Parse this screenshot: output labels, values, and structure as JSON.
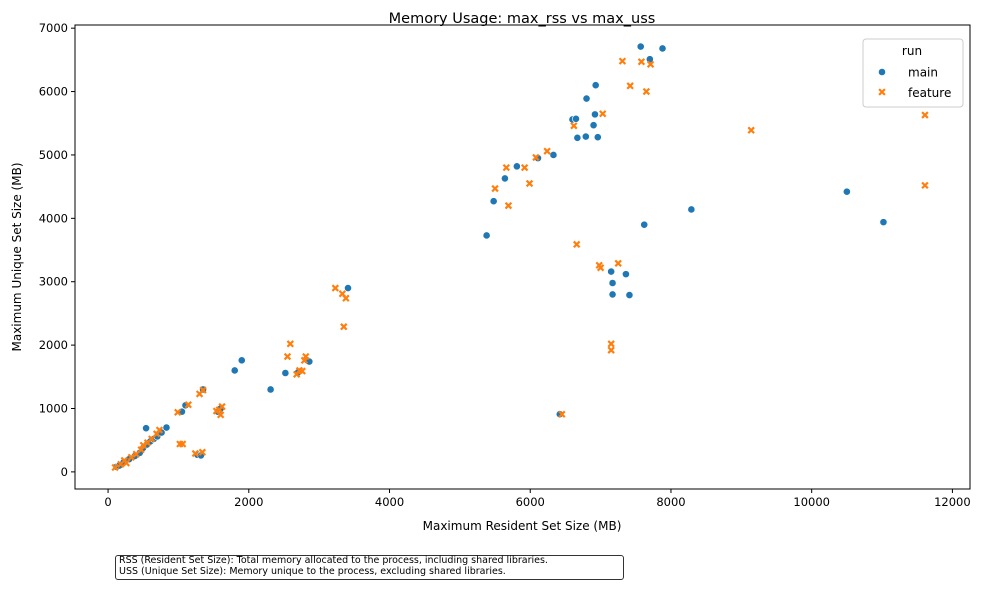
{
  "chart_data": {
    "type": "scatter",
    "title": "Memory Usage: max_rss vs max_uss",
    "xlabel": "Maximum Resident Set Size (MB)",
    "ylabel": "Maximum Unique Set Size (MB)",
    "xlim": [
      -470,
      12250
    ],
    "ylim": [
      -270,
      7050
    ],
    "xticks": [
      0,
      2000,
      4000,
      6000,
      8000,
      10000,
      12000
    ],
    "xtick_labels": [
      "0",
      "2000",
      "4000",
      "6000",
      "8000",
      "10000",
      "12000"
    ],
    "yticks": [
      0,
      1000,
      2000,
      3000,
      4000,
      5000,
      6000,
      7000
    ],
    "ytick_labels": [
      "0",
      "1000",
      "2000",
      "3000",
      "4000",
      "5000",
      "6000",
      "7000"
    ],
    "grid": false,
    "legend": {
      "title": "run",
      "position": "top-right"
    },
    "series": [
      {
        "name": "main",
        "marker": "circle",
        "color": "#1f77b4",
        "points": [
          [
            120,
            80
          ],
          [
            160,
            100
          ],
          [
            220,
            150
          ],
          [
            300,
            200
          ],
          [
            380,
            250
          ],
          [
            450,
            300
          ],
          [
            500,
            380
          ],
          [
            550,
            430
          ],
          [
            600,
            480
          ],
          [
            650,
            520
          ],
          [
            700,
            560
          ],
          [
            760,
            620
          ],
          [
            540,
            690
          ],
          [
            830,
            700
          ],
          [
            1050,
            950
          ],
          [
            1100,
            1050
          ],
          [
            1270,
            270
          ],
          [
            1320,
            260
          ],
          [
            1350,
            1300
          ],
          [
            1560,
            950
          ],
          [
            1600,
            1000
          ],
          [
            1800,
            1600
          ],
          [
            1900,
            1760
          ],
          [
            2310,
            1300
          ],
          [
            2520,
            1560
          ],
          [
            2700,
            1570
          ],
          [
            2830,
            1760
          ],
          [
            2860,
            1740
          ],
          [
            3410,
            2900
          ],
          [
            5380,
            3730
          ],
          [
            5480,
            4270
          ],
          [
            5640,
            4630
          ],
          [
            5810,
            4820
          ],
          [
            6110,
            4950
          ],
          [
            6330,
            5000
          ],
          [
            6420,
            910
          ],
          [
            6600,
            5560
          ],
          [
            6650,
            5570
          ],
          [
            6670,
            5270
          ],
          [
            6790,
            5290
          ],
          [
            6800,
            5890
          ],
          [
            6900,
            5470
          ],
          [
            6920,
            5640
          ],
          [
            6930,
            6100
          ],
          [
            6960,
            5280
          ],
          [
            7150,
            3160
          ],
          [
            7170,
            2980
          ],
          [
            7170,
            2800
          ],
          [
            7360,
            3120
          ],
          [
            7410,
            2790
          ],
          [
            7570,
            6710
          ],
          [
            7620,
            3900
          ],
          [
            7700,
            6510
          ],
          [
            7880,
            6680
          ],
          [
            8290,
            4140
          ],
          [
            10500,
            4420
          ],
          [
            11020,
            3940
          ]
        ]
      },
      {
        "name": "feature",
        "marker": "x",
        "color": "#ff7f0e",
        "points": [
          [
            100,
            70
          ],
          [
            180,
            120
          ],
          [
            230,
            180
          ],
          [
            260,
            140
          ],
          [
            330,
            230
          ],
          [
            400,
            280
          ],
          [
            470,
            350
          ],
          [
            500,
            420
          ],
          [
            560,
            460
          ],
          [
            620,
            520
          ],
          [
            690,
            600
          ],
          [
            730,
            660
          ],
          [
            990,
            940
          ],
          [
            1020,
            440
          ],
          [
            1060,
            440
          ],
          [
            1140,
            1060
          ],
          [
            1240,
            290
          ],
          [
            1300,
            1230
          ],
          [
            1340,
            310
          ],
          [
            1350,
            1290
          ],
          [
            1540,
            960
          ],
          [
            1580,
            980
          ],
          [
            1600,
            900
          ],
          [
            1620,
            1030
          ],
          [
            2550,
            1820
          ],
          [
            2590,
            2020
          ],
          [
            2680,
            1540
          ],
          [
            2720,
            1600
          ],
          [
            2760,
            1590
          ],
          [
            2790,
            1760
          ],
          [
            2810,
            1820
          ],
          [
            3230,
            2900
          ],
          [
            3330,
            2810
          ],
          [
            3350,
            2290
          ],
          [
            3380,
            2740
          ],
          [
            5500,
            4470
          ],
          [
            5660,
            4800
          ],
          [
            5690,
            4200
          ],
          [
            5920,
            4800
          ],
          [
            5990,
            4550
          ],
          [
            6080,
            4960
          ],
          [
            6240,
            5060
          ],
          [
            6450,
            910
          ],
          [
            6620,
            5460
          ],
          [
            6660,
            3590
          ],
          [
            6980,
            3260
          ],
          [
            7000,
            3220
          ],
          [
            7030,
            5650
          ],
          [
            7150,
            2020
          ],
          [
            7150,
            1920
          ],
          [
            7250,
            3290
          ],
          [
            7310,
            6480
          ],
          [
            7420,
            6090
          ],
          [
            7580,
            6470
          ],
          [
            7650,
            6000
          ],
          [
            7710,
            6430
          ],
          [
            9140,
            5390
          ],
          [
            11610,
            5630
          ],
          [
            11610,
            4520
          ]
        ]
      }
    ]
  },
  "footnote": {
    "line1": "RSS (Resident Set Size): Total memory allocated to the process, including shared libraries.",
    "line2": "USS (Unique Set Size): Memory unique to the process, excluding shared libraries."
  }
}
